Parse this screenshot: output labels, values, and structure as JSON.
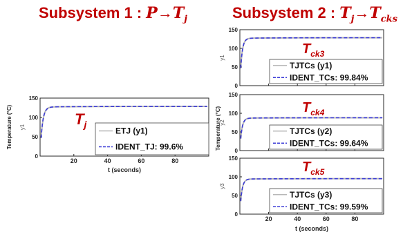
{
  "headings": [
    {
      "prefix": "Subsystem 1 : ",
      "math_a": "P",
      "arrow": "→",
      "math_b": "T",
      "math_b_sub": "j"
    },
    {
      "prefix": "Subsystem 2 : ",
      "math_a": "T",
      "math_a_sub": "j",
      "arrow": "→",
      "math_b": "T",
      "math_b_sub": "cks"
    }
  ],
  "chart_data": [
    {
      "id": "tj",
      "type": "line",
      "xlabel": "t (seconds)",
      "ylabel": "y1",
      "outer_ylabel": "Temperature (°C)",
      "xlim": [
        0,
        100
      ],
      "ylim": [
        0,
        150
      ],
      "xticks": [
        20,
        40,
        60,
        80
      ],
      "yticks": [
        0,
        50,
        100,
        150
      ],
      "annotation": {
        "base": "T",
        "sub": "j"
      },
      "steady_value": 127,
      "series": [
        {
          "name": "ETJ (y1)",
          "color": "#b8b8b8",
          "style": "solid"
        },
        {
          "name": "IDENT_TJ: 99.6%",
          "color": "#3b3bd6",
          "style": "dashed"
        }
      ]
    },
    {
      "id": "tck3",
      "type": "line",
      "ylabel": "y1",
      "xlim": [
        0,
        100
      ],
      "ylim": [
        0,
        150
      ],
      "yticks": [
        0,
        50,
        100,
        150
      ],
      "annotation": {
        "base": "T",
        "sub": "ck3"
      },
      "steady_value": 127,
      "series": [
        {
          "name": "TJTCs (y1)",
          "color": "#b8b8b8",
          "style": "solid"
        },
        {
          "name": "IDENT_TCs: 99.84%",
          "color": "#3b3bd6",
          "style": "dashed"
        }
      ]
    },
    {
      "id": "tck4",
      "type": "line",
      "ylabel": "y2",
      "outer_ylabel": "Temperature (°C)",
      "xlim": [
        0,
        100
      ],
      "ylim": [
        0,
        150
      ],
      "yticks": [
        0,
        50,
        100,
        150
      ],
      "annotation": {
        "base": "T",
        "sub": "ck4"
      },
      "steady_value": 87,
      "series": [
        {
          "name": "TJTCs (y2)",
          "color": "#b8b8b8",
          "style": "solid"
        },
        {
          "name": "IDENT_TCs: 99.64%",
          "color": "#3b3bd6",
          "style": "dashed"
        }
      ]
    },
    {
      "id": "tck5",
      "type": "line",
      "xlabel": "t (seconds)",
      "ylabel": "y3",
      "xlim": [
        0,
        100
      ],
      "ylim": [
        0,
        150
      ],
      "xticks": [
        20,
        40,
        60,
        80
      ],
      "yticks": [
        0,
        50,
        100,
        150
      ],
      "annotation": {
        "base": "T",
        "sub": "ck5"
      },
      "steady_value": 94,
      "series": [
        {
          "name": "TJTCs (y3)",
          "color": "#b8b8b8",
          "style": "solid"
        },
        {
          "name": "IDENT_TCs: 99.59%",
          "color": "#3b3bd6",
          "style": "dashed"
        }
      ]
    }
  ],
  "colors": {
    "annotation": "#c00000",
    "axis": "#262626",
    "grid": "#d9d9d9"
  }
}
